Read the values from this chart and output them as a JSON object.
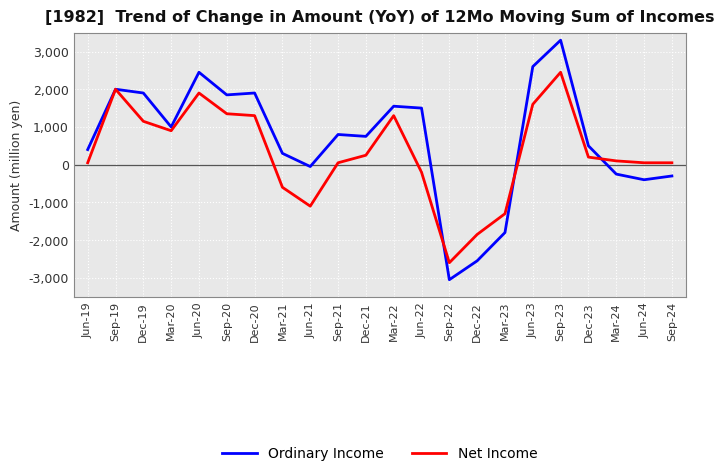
{
  "title": "[1982]  Trend of Change in Amount (YoY) of 12Mo Moving Sum of Incomes",
  "ylabel": "Amount (million yen)",
  "x_labels": [
    "Jun-19",
    "Sep-19",
    "Dec-19",
    "Mar-20",
    "Jun-20",
    "Sep-20",
    "Dec-20",
    "Mar-21",
    "Jun-21",
    "Sep-21",
    "Dec-21",
    "Mar-22",
    "Jun-22",
    "Sep-22",
    "Dec-22",
    "Mar-23",
    "Jun-23",
    "Sep-23",
    "Dec-23",
    "Mar-24",
    "Jun-24",
    "Sep-24"
  ],
  "ordinary_income": [
    400,
    2000,
    1900,
    1000,
    2450,
    1850,
    1900,
    300,
    -50,
    800,
    750,
    1550,
    1500,
    -3050,
    -2550,
    -1800,
    2600,
    3300,
    500,
    -250,
    -400,
    -300
  ],
  "net_income": [
    50,
    2000,
    1150,
    900,
    1900,
    1350,
    1300,
    -600,
    -1100,
    50,
    250,
    1300,
    -200,
    -2600,
    -1850,
    -1300,
    1600,
    2450,
    200,
    100,
    50,
    50
  ],
  "ordinary_color": "#0000ff",
  "net_color": "#ff0000",
  "ylim": [
    -3500,
    3500
  ],
  "yticks": [
    -3000,
    -2000,
    -1000,
    0,
    1000,
    2000,
    3000
  ],
  "plot_bg_color": "#e8e8e8",
  "fig_bg_color": "#ffffff",
  "grid_color": "#ffffff",
  "line_width": 2.0
}
